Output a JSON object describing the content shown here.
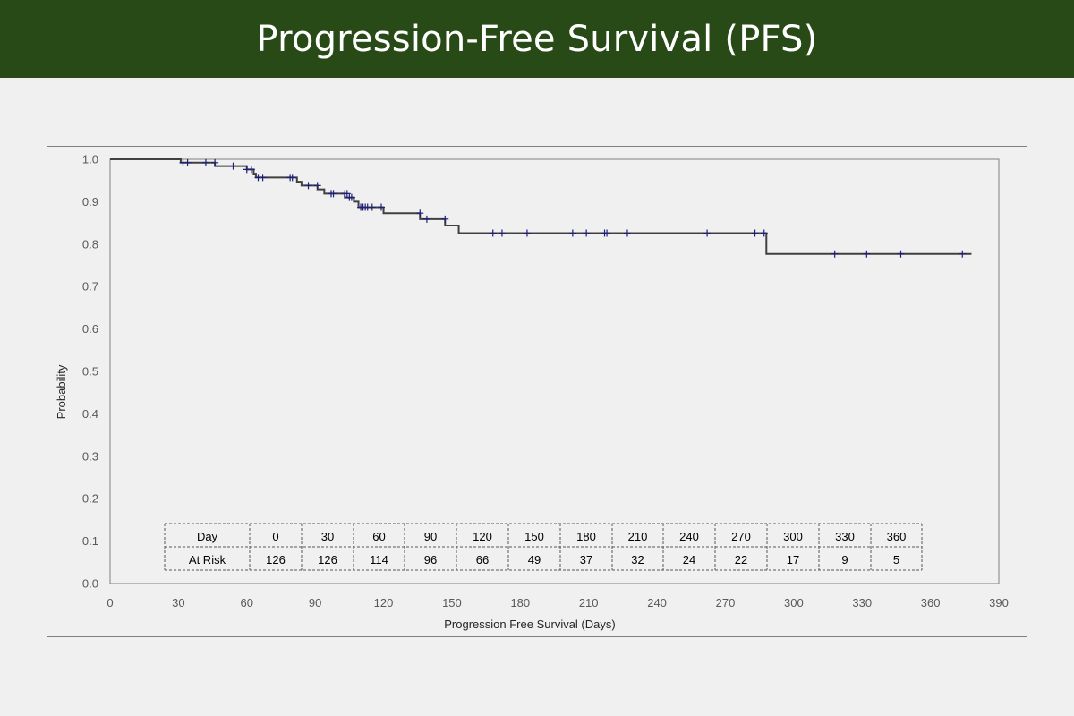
{
  "header": {
    "title": "Progression-Free Survival (PFS)",
    "background_color": "#284a17"
  },
  "chart_data": {
    "type": "line",
    "style": "step",
    "title": "",
    "xlabel": "Progression Free Survival (Days)",
    "ylabel": "Probability",
    "xlim": [
      0,
      390
    ],
    "ylim": [
      0.0,
      1.0
    ],
    "xticks": [
      0,
      30,
      60,
      90,
      120,
      150,
      180,
      210,
      240,
      270,
      300,
      330,
      360,
      390
    ],
    "yticks": [
      0.0,
      0.1,
      0.2,
      0.3,
      0.4,
      0.5,
      0.6,
      0.7,
      0.8,
      0.9,
      1.0
    ],
    "ytick_labels": [
      "0.0",
      "0.1",
      "0.2",
      "0.3",
      "0.4",
      "0.5",
      "0.6",
      "0.7",
      "0.8",
      "0.9",
      "1.0"
    ],
    "grid": false,
    "line_color": "#404040",
    "censor_color": "#1f1f7a",
    "series": [
      {
        "steps": [
          [
            0,
            1.0
          ],
          [
            31,
            0.992
          ],
          [
            46,
            0.984
          ],
          [
            60,
            0.976
          ],
          [
            63,
            0.966
          ],
          [
            64,
            0.957
          ],
          [
            82,
            0.947
          ],
          [
            84,
            0.938
          ],
          [
            91,
            0.929
          ],
          [
            94,
            0.919
          ],
          [
            103,
            0.91
          ],
          [
            107,
            0.9
          ],
          [
            109,
            0.887
          ],
          [
            120,
            0.873
          ],
          [
            136,
            0.859
          ],
          [
            147,
            0.844
          ],
          [
            153,
            0.826
          ],
          [
            288,
            0.777
          ],
          [
            378,
            0.777
          ]
        ],
        "censored": [
          [
            32,
            0.992
          ],
          [
            34,
            0.992
          ],
          [
            42,
            0.992
          ],
          [
            46,
            0.992
          ],
          [
            54,
            0.984
          ],
          [
            60,
            0.976
          ],
          [
            62,
            0.976
          ],
          [
            65,
            0.957
          ],
          [
            67,
            0.957
          ],
          [
            79,
            0.957
          ],
          [
            80,
            0.957
          ],
          [
            87,
            0.938
          ],
          [
            91,
            0.938
          ],
          [
            97,
            0.919
          ],
          [
            98,
            0.919
          ],
          [
            103,
            0.919
          ],
          [
            104,
            0.919
          ],
          [
            105,
            0.91
          ],
          [
            106,
            0.91
          ],
          [
            110,
            0.887
          ],
          [
            111,
            0.887
          ],
          [
            112,
            0.887
          ],
          [
            113,
            0.887
          ],
          [
            115,
            0.887
          ],
          [
            119,
            0.887
          ],
          [
            136,
            0.873
          ],
          [
            139,
            0.859
          ],
          [
            147,
            0.859
          ],
          [
            168,
            0.826
          ],
          [
            172,
            0.826
          ],
          [
            183,
            0.826
          ],
          [
            203,
            0.826
          ],
          [
            209,
            0.826
          ],
          [
            217,
            0.826
          ],
          [
            218,
            0.826
          ],
          [
            227,
            0.826
          ],
          [
            262,
            0.826
          ],
          [
            283,
            0.826
          ],
          [
            287,
            0.826
          ],
          [
            318,
            0.777
          ],
          [
            332,
            0.777
          ],
          [
            347,
            0.777
          ],
          [
            374,
            0.777
          ]
        ]
      }
    ],
    "risk_table": {
      "row_labels": [
        "Day",
        "At Risk"
      ],
      "days": [
        "0",
        "30",
        "60",
        "90",
        "120",
        "150",
        "180",
        "210",
        "240",
        "270",
        "300",
        "330",
        "360"
      ],
      "at_risk": [
        "126",
        "126",
        "114",
        "96",
        "66",
        "49",
        "37",
        "32",
        "24",
        "22",
        "17",
        "9",
        "5"
      ]
    }
  }
}
